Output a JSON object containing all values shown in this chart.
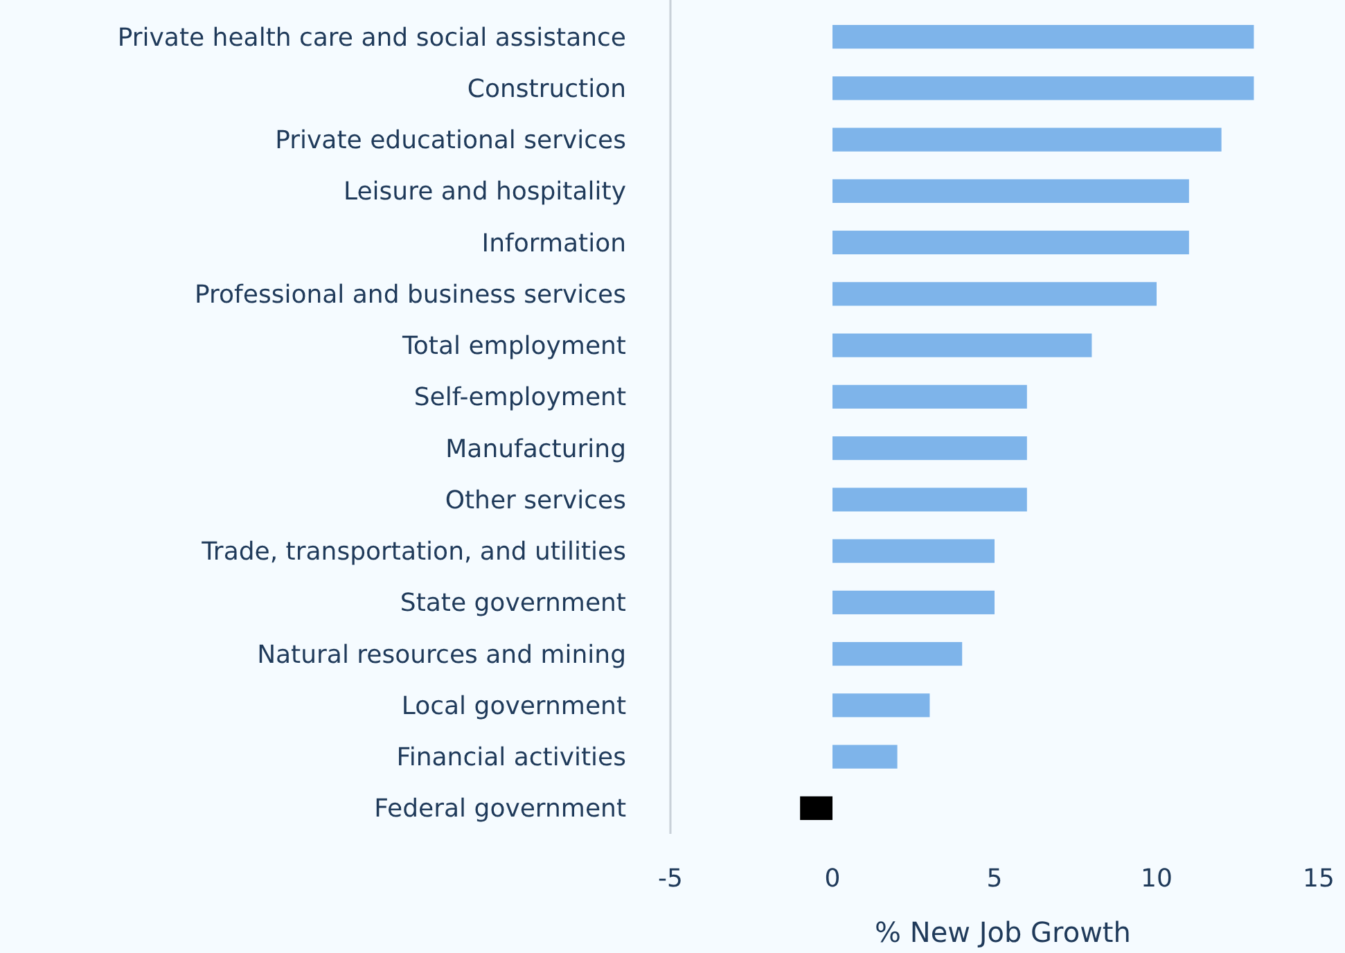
{
  "chart_data": {
    "type": "bar",
    "orientation": "horizontal",
    "xlabel": "% New Job Growth",
    "categories": [
      "Private health care and social assistance",
      "Construction",
      "Private educational services",
      "Leisure and hospitality",
      "Information",
      "Professional and business services",
      "Total employment",
      "Self-employment",
      "Manufacturing",
      "Other services",
      "Trade, transportation, and utilities",
      "State government",
      "Natural resources and mining",
      "Local government",
      "Financial activities",
      "Federal government"
    ],
    "values": [
      13,
      13,
      12,
      11,
      11,
      10,
      8,
      6,
      6,
      6,
      5,
      5,
      4,
      3,
      2,
      -1
    ],
    "colors": [
      "#7eb4ea",
      "#7eb4ea",
      "#7eb4ea",
      "#7eb4ea",
      "#7eb4ea",
      "#7eb4ea",
      "#7eb4ea",
      "#7eb4ea",
      "#7eb4ea",
      "#7eb4ea",
      "#7eb4ea",
      "#7eb4ea",
      "#7eb4ea",
      "#7eb4ea",
      "#7eb4ea",
      "#000000"
    ],
    "xlim": [
      -5,
      15
    ],
    "xticks": [
      -5,
      0,
      5,
      10,
      15
    ],
    "grid": false
  }
}
